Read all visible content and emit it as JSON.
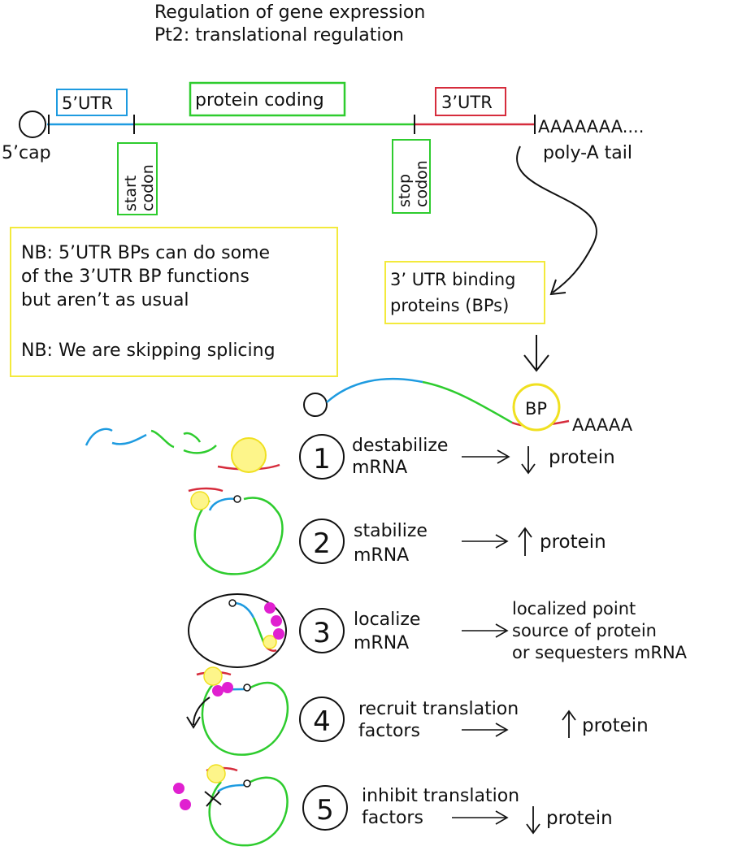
{
  "title": {
    "line1": "Regulation of gene expression",
    "line2": "Pt2: translational regulation"
  },
  "mrna_map": {
    "cap_label": "5’cap",
    "utr5_label": "5’UTR",
    "coding_label": "protein coding",
    "utr3_label": "3’UTR",
    "polya_seq": "AAAAAAA....",
    "polya_label": "poly-A tail",
    "start_codon_l1": "start",
    "start_codon_l2": "codon",
    "stop_codon_l1": "stop",
    "stop_codon_l2": "codon"
  },
  "notes": {
    "nb1_line1": "NB: 5’UTR BPs can do some",
    "nb1_line2": "of the 3’UTR BP functions",
    "nb1_line3": "but aren’t as usual",
    "nb2": "NB: We are skipping splicing"
  },
  "binding_proteins": {
    "line1": "3’ UTR binding",
    "line2": "proteins (BPs)",
    "bp_label": "BP",
    "polya_short": "AAAAA"
  },
  "functions": [
    {
      "number": "1",
      "line1": "destabilize",
      "line2": "mRNA",
      "effect": "protein",
      "effect_dir": "down"
    },
    {
      "number": "2",
      "line1": "stabilize",
      "line2": "mRNA",
      "effect": "protein",
      "effect_dir": "up"
    },
    {
      "number": "3",
      "line1": "localize",
      "line2": "mRNA",
      "effect_l1": "localized point",
      "effect_l2": "source of protein",
      "effect_l3": "or sequesters mRNA"
    },
    {
      "number": "4",
      "line1": "recruit translation",
      "line2": "factors",
      "effect": "protein",
      "effect_dir": "up"
    },
    {
      "number": "5",
      "line1": "inhibit translation",
      "line2": "factors",
      "effect": "protein",
      "effect_dir": "down"
    }
  ],
  "colors": {
    "utr5": "#1e9be0",
    "coding": "#2ecc2e",
    "utr3": "#d62c3c",
    "bp_fill": "#fdf58a",
    "bp_stroke": "#f0e020",
    "factor": "#e020d0",
    "note_border": "#f3ea3c",
    "ink": "#111111"
  }
}
